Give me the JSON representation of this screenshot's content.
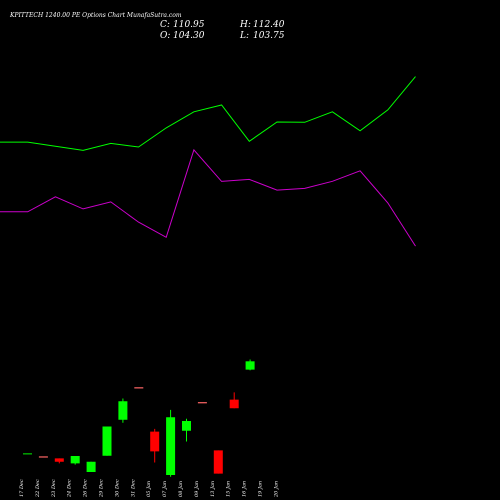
{
  "chart_data": {
    "type": "candlestick",
    "title": "KPITTECH 1240.00 PE Options Chart MunafaSutra.com",
    "ohlc_readout": {
      "close_label": "C:",
      "close": "110.95",
      "open_label": "O:",
      "open": "104.30",
      "high_label": "H:",
      "high": "112.40",
      "low_label": "L:",
      "low": "103.75"
    },
    "categories": [
      "17 Dec",
      "22 Dec",
      "23 Dec",
      "24 Dec",
      "26 Dec",
      "29 Dec",
      "30 Dec",
      "31 Dec",
      "05 Jan",
      "07 Jan",
      "08 Jan",
      "09 Jan",
      "13 Jan",
      "15 Jan",
      "16 Jan",
      "19 Jan",
      "20 Jan"
    ],
    "candles": [
      {
        "date": "17 Dec",
        "open": 37.0,
        "high": 37.0,
        "low": 37.0,
        "close": 37.0
      },
      {
        "date": "22 Dec",
        "open": 34.5,
        "high": 34.5,
        "low": 34.5,
        "close": 34.5
      },
      {
        "date": "23 Dec",
        "open": 33.3,
        "high": 33.3,
        "low": 29.3,
        "close": 30.6
      },
      {
        "date": "24 Dec",
        "open": 29.3,
        "high": 35.2,
        "low": 28.3,
        "close": 35.2
      },
      {
        "date": "26 Dec",
        "open": 22.4,
        "high": 30.6,
        "low": 22.4,
        "close": 30.6
      },
      {
        "date": "29 Dec",
        "open": 35.4,
        "high": 58.8,
        "low": 35.4,
        "close": 58.8
      },
      {
        "date": "30 Dec",
        "open": 64.2,
        "high": 81.2,
        "low": 61.8,
        "close": 79.0
      },
      {
        "date": "31 Dec",
        "open": 89.8,
        "high": 89.8,
        "low": 89.8,
        "close": 89.8
      },
      {
        "date": "05 Jan",
        "open": 54.7,
        "high": 56.9,
        "low": 30.0,
        "close": 38.9
      },
      {
        "date": "07 Jan",
        "open": 20.0,
        "high": 72.1,
        "low": 18.6,
        "close": 66.2
      },
      {
        "date": "08 Jan",
        "open": 55.4,
        "high": 65.0,
        "low": 46.8,
        "close": 63.2
      },
      {
        "date": "09 Jan",
        "open": 77.9,
        "high": 77.9,
        "low": 77.9,
        "close": 77.9
      },
      {
        "date": "13 Jan",
        "open": 39.7,
        "high": 39.7,
        "low": 21.1,
        "close": 21.1
      },
      {
        "date": "15 Jan",
        "open": 80.3,
        "high": 86.1,
        "low": 73.4,
        "close": 73.4
      },
      {
        "date": "16 Jan",
        "open": 104.3,
        "high": 112.4,
        "low": 103.75,
        "close": 110.95
      }
    ],
    "ylim": [
      0,
      380
    ],
    "upper_line": {
      "color": "#00ff00",
      "values": [
        286.3,
        286.3,
        283.0,
        279.7,
        285.3,
        282.4,
        297.7,
        310.6,
        316.0,
        287.0,
        302.4,
        302.2,
        310.6,
        295.4,
        312.1,
        338.7
      ]
    },
    "lower_line": {
      "color": "#cc00cc",
      "values": [
        230.6,
        230.6,
        242.6,
        232.9,
        238.5,
        222.3,
        210.2,
        280.1,
        254.9,
        256.5,
        247.9,
        249.3,
        255.0,
        263.4,
        237.7,
        203.1
      ]
    },
    "colors": {
      "up": "#00ff00",
      "down": "#ff0000",
      "doji_up": "#00cc00",
      "doji_down": "#ff6666",
      "background": "#000000"
    }
  }
}
